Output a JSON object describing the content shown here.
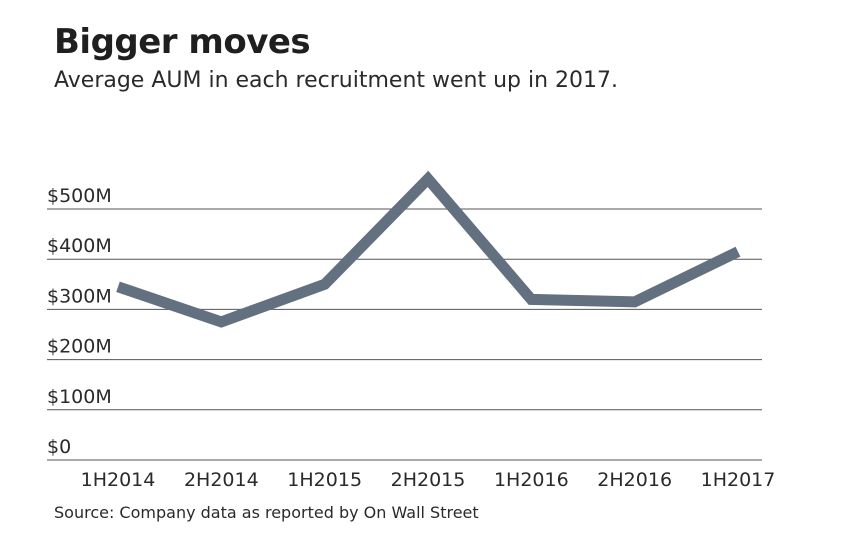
{
  "title": "Bigger moves",
  "subtitle": "Average AUM in each recruitment went up in 2017.",
  "source": "Source: Company data as reported by On Wall Street",
  "colors": {
    "line": "#627080",
    "grid": "#555555",
    "text": "#2a2a2a"
  },
  "chart_data": {
    "type": "line",
    "categories": [
      "1H2014",
      "2H2014",
      "1H2015",
      "2H2015",
      "1H2016",
      "2H2016",
      "1H2017"
    ],
    "series": [
      {
        "values": [
          345,
          275,
          350,
          560,
          320,
          315,
          415
        ]
      }
    ],
    "y_ticks": [
      0,
      100,
      200,
      300,
      400,
      500
    ],
    "y_tick_labels": [
      "$0",
      "$100M",
      "$200M",
      "$300M",
      "$400M",
      "$500M"
    ],
    "ylim": [
      0,
      500
    ],
    "xlabel": "",
    "ylabel": "",
    "grid": true,
    "legend": "none"
  }
}
